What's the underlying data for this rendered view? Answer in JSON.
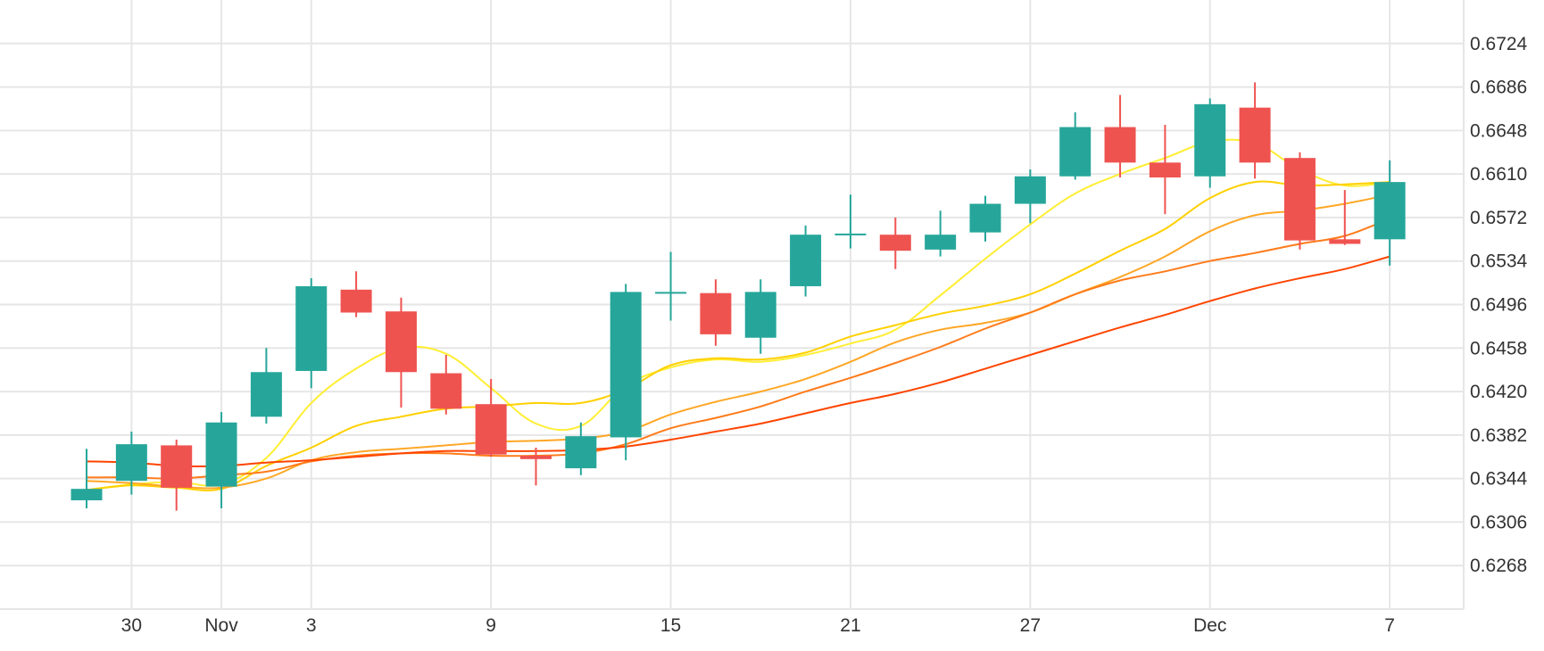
{
  "chart_data": {
    "type": "candlestick",
    "title": "",
    "xlabel": "",
    "ylabel": "",
    "y_axis_position": "right",
    "grid": true,
    "legend": "none",
    "ylim": [
      0.623,
      0.6762
    ],
    "y_ticks": [
      "0.6724",
      "0.6686",
      "0.6648",
      "0.6610",
      "0.6572",
      "0.6534",
      "0.6496",
      "0.6458",
      "0.6420",
      "0.6382",
      "0.6344",
      "0.6306",
      "0.6268"
    ],
    "x_ticks": [
      {
        "label": "30",
        "index": 1
      },
      {
        "label": "Nov",
        "index": 3
      },
      {
        "label": "3",
        "index": 5
      },
      {
        "label": "9",
        "index": 9
      },
      {
        "label": "15",
        "index": 13
      },
      {
        "label": "21",
        "index": 17
      },
      {
        "label": "27",
        "index": 21
      },
      {
        "label": "Dec",
        "index": 25
      },
      {
        "label": "7",
        "index": 29
      }
    ],
    "x_count": 30,
    "colors": {
      "up": "#26a69a",
      "down": "#ef5350",
      "grid": "#e6e6e6",
      "text": "#333333"
    },
    "candles": [
      {
        "o": 0.6325,
        "h": 0.637,
        "l": 0.6318,
        "c": 0.6335
      },
      {
        "o": 0.6342,
        "h": 0.6385,
        "l": 0.633,
        "c": 0.6374
      },
      {
        "o": 0.6373,
        "h": 0.6378,
        "l": 0.6316,
        "c": 0.6336
      },
      {
        "o": 0.6337,
        "h": 0.6402,
        "l": 0.6318,
        "c": 0.6393
      },
      {
        "o": 0.6398,
        "h": 0.6458,
        "l": 0.6392,
        "c": 0.6437
      },
      {
        "o": 0.6438,
        "h": 0.6519,
        "l": 0.6423,
        "c": 0.6512
      },
      {
        "o": 0.6509,
        "h": 0.6525,
        "l": 0.6485,
        "c": 0.6489
      },
      {
        "o": 0.649,
        "h": 0.6502,
        "l": 0.6406,
        "c": 0.6437
      },
      {
        "o": 0.6436,
        "h": 0.6452,
        "l": 0.64,
        "c": 0.6405
      },
      {
        "o": 0.6409,
        "h": 0.6431,
        "l": 0.6363,
        "c": 0.6365
      },
      {
        "o": 0.6364,
        "h": 0.6371,
        "l": 0.6338,
        "c": 0.6361
      },
      {
        "o": 0.6353,
        "h": 0.6393,
        "l": 0.6347,
        "c": 0.6381
      },
      {
        "o": 0.638,
        "h": 0.6514,
        "l": 0.636,
        "c": 0.6507
      },
      {
        "o": 0.6507,
        "h": 0.6542,
        "l": 0.6482,
        "c": 0.6507
      },
      {
        "o": 0.6506,
        "h": 0.6518,
        "l": 0.646,
        "c": 0.647
      },
      {
        "o": 0.6467,
        "h": 0.6518,
        "l": 0.6453,
        "c": 0.6507
      },
      {
        "o": 0.6512,
        "h": 0.6565,
        "l": 0.6503,
        "c": 0.6557
      },
      {
        "o": 0.6558,
        "h": 0.6592,
        "l": 0.6545,
        "c": 0.6558
      },
      {
        "o": 0.6557,
        "h": 0.6572,
        "l": 0.6527,
        "c": 0.6543
      },
      {
        "o": 0.6544,
        "h": 0.6578,
        "l": 0.6538,
        "c": 0.6557
      },
      {
        "o": 0.6559,
        "h": 0.6591,
        "l": 0.6551,
        "c": 0.6584
      },
      {
        "o": 0.6584,
        "h": 0.6614,
        "l": 0.6567,
        "c": 0.6608
      },
      {
        "o": 0.6608,
        "h": 0.6664,
        "l": 0.6605,
        "c": 0.6651
      },
      {
        "o": 0.6651,
        "h": 0.6679,
        "l": 0.6607,
        "c": 0.662
      },
      {
        "o": 0.662,
        "h": 0.6653,
        "l": 0.6575,
        "c": 0.6607
      },
      {
        "o": 0.6608,
        "h": 0.6676,
        "l": 0.6598,
        "c": 0.6671
      },
      {
        "o": 0.6668,
        "h": 0.669,
        "l": 0.6606,
        "c": 0.662
      },
      {
        "o": 0.6624,
        "h": 0.6629,
        "l": 0.6544,
        "c": 0.6552
      },
      {
        "o": 0.6553,
        "h": 0.6596,
        "l": 0.6548,
        "c": 0.6549
      },
      {
        "o": 0.6553,
        "h": 0.6622,
        "l": 0.653,
        "c": 0.6603
      }
    ],
    "series": [
      {
        "color": "#ffee33",
        "values": [
          0.6334,
          0.6339,
          0.6341,
          0.6339,
          0.6362,
          0.641,
          0.644,
          0.6458,
          0.6453,
          0.6423,
          0.6392,
          0.639,
          0.6425,
          0.6441,
          0.6448,
          0.6446,
          0.6452,
          0.6462,
          0.6474,
          0.6504,
          0.6536,
          0.6566,
          0.6593,
          0.661,
          0.6624,
          0.6638,
          0.6637,
          0.6614,
          0.66,
          0.6603
        ]
      },
      {
        "color": "#ffd000",
        "values": [
          0.6334,
          0.6338,
          0.6336,
          0.6335,
          0.6355,
          0.6371,
          0.639,
          0.6398,
          0.6405,
          0.6407,
          0.641,
          0.641,
          0.6422,
          0.6443,
          0.6449,
          0.6448,
          0.6454,
          0.6468,
          0.6478,
          0.6488,
          0.6495,
          0.6505,
          0.6523,
          0.6543,
          0.6562,
          0.6589,
          0.6603,
          0.66,
          0.6601,
          0.6603
        ]
      },
      {
        "color": "#ffa726",
        "values": [
          0.6342,
          0.634,
          0.6337,
          0.6336,
          0.6344,
          0.636,
          0.6367,
          0.637,
          0.6373,
          0.6376,
          0.6377,
          0.6379,
          0.6385,
          0.64,
          0.6411,
          0.642,
          0.6431,
          0.6446,
          0.6463,
          0.6474,
          0.648,
          0.6489,
          0.6505,
          0.652,
          0.6538,
          0.656,
          0.6574,
          0.6578,
          0.6584,
          0.6592
        ]
      },
      {
        "color": "#ff7b1a",
        "values": [
          0.6345,
          0.6345,
          0.6344,
          0.6347,
          0.635,
          0.6359,
          0.6364,
          0.6366,
          0.6366,
          0.6364,
          0.6364,
          0.6366,
          0.6374,
          0.6388,
          0.6397,
          0.6407,
          0.642,
          0.6432,
          0.6445,
          0.6459,
          0.6475,
          0.6489,
          0.6505,
          0.6517,
          0.6525,
          0.6534,
          0.6541,
          0.6549,
          0.6556,
          0.6571
        ]
      },
      {
        "color": "#ff4500",
        "values": [
          0.6359,
          0.6358,
          0.6355,
          0.6355,
          0.6358,
          0.636,
          0.6363,
          0.6366,
          0.6368,
          0.6368,
          0.6368,
          0.6369,
          0.6372,
          0.6378,
          0.6385,
          0.6392,
          0.6401,
          0.641,
          0.6418,
          0.6428,
          0.644,
          0.6452,
          0.6464,
          0.6476,
          0.6487,
          0.6499,
          0.651,
          0.6519,
          0.6527,
          0.6538
        ]
      }
    ]
  }
}
